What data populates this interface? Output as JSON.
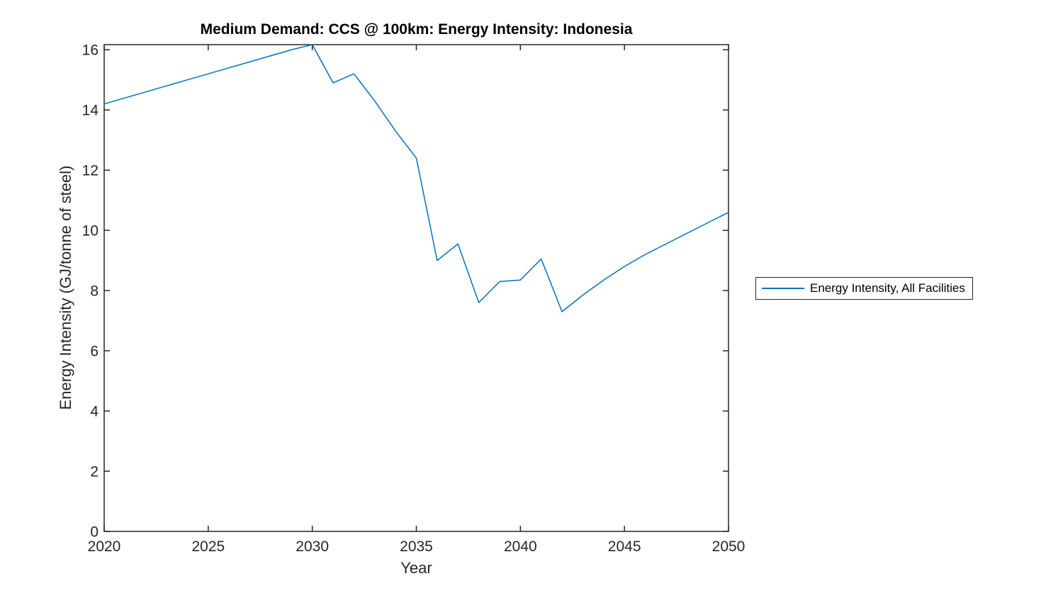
{
  "window": {
    "background": "#ffffff"
  },
  "colors": {
    "line": "#0072BD",
    "axis": "#262626",
    "tick_label": "#262626",
    "title": "#000000",
    "legend_border": "#262626",
    "legend_background": "#ffffff"
  },
  "legend": {
    "entries": [
      {
        "label": "Energy Intensity, All Facilities",
        "color": "#0072BD"
      }
    ],
    "position": "right-outside-middle",
    "border": true
  },
  "chart_data": {
    "type": "line",
    "title": "Medium Demand: CCS @ 100km: Energy Intensity: Indonesia",
    "xlabel": "Year",
    "ylabel": "Energy Intensity (GJ/tonne of steel)",
    "xlim": [
      2020,
      2050
    ],
    "ylim": [
      0,
      16.17
    ],
    "xticks": [
      2020,
      2025,
      2030,
      2035,
      2040,
      2045,
      2050
    ],
    "yticks": [
      0,
      2,
      4,
      6,
      8,
      10,
      12,
      14,
      16
    ],
    "grid": false,
    "box": true,
    "tick_direction": "in",
    "legend_position": "right-outside",
    "x": [
      2020,
      2021,
      2022,
      2023,
      2024,
      2025,
      2026,
      2027,
      2028,
      2029,
      2030,
      2031,
      2032,
      2033,
      2034,
      2035,
      2036,
      2037,
      2038,
      2039,
      2040,
      2041,
      2042,
      2043,
      2044,
      2045,
      2046,
      2047,
      2048,
      2049,
      2050
    ],
    "series": [
      {
        "name": "Energy Intensity, All Facilities",
        "color": "#0072BD",
        "values": [
          14.2,
          14.4,
          14.6,
          14.8,
          15.0,
          15.2,
          15.4,
          15.6,
          15.8,
          16.0,
          16.17,
          14.9,
          15.2,
          14.3,
          13.3,
          12.4,
          9.0,
          9.55,
          7.6,
          8.3,
          8.35,
          9.05,
          7.3,
          7.85,
          8.35,
          8.8,
          9.2,
          9.55,
          9.9,
          10.25,
          10.6
        ]
      }
    ]
  }
}
